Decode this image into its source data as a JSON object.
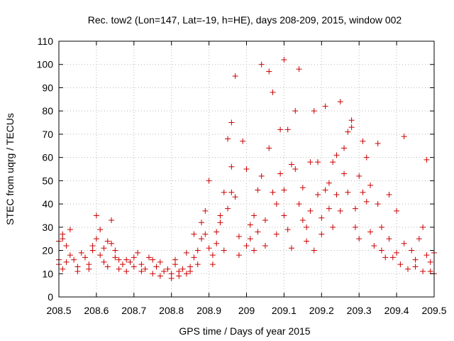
{
  "chart_data": {
    "type": "scatter",
    "title": "Rec. tow2 (Lon=147, Lat=-19, h=HE), days 208-209, 2015, window 002",
    "xlabel": "GPS time / Days of year 2015",
    "ylabel": "STEC from uqrg / TECUs",
    "xlim": [
      208.5,
      209.5
    ],
    "ylim": [
      0,
      110
    ],
    "xticks": [
      208.5,
      208.6,
      208.7,
      208.8,
      208.9,
      209,
      209.1,
      209.2,
      209.3,
      209.4,
      209.5
    ],
    "xtick_labels": [
      "208.5",
      "208.6",
      "208.7",
      "208.8",
      "208.9",
      "209",
      "209.1",
      "209.2",
      "209.3",
      "209.4",
      "209.5"
    ],
    "yticks": [
      0,
      10,
      20,
      30,
      40,
      50,
      60,
      70,
      80,
      90,
      100,
      110
    ],
    "ytick_labels": [
      "0",
      "10",
      "20",
      "30",
      "40",
      "50",
      "60",
      "70",
      "80",
      "90",
      "100",
      "110"
    ],
    "marker": "+",
    "color": "#cc0000",
    "series": [
      {
        "name": "STEC",
        "points": [
          [
            208.5,
            24
          ],
          [
            208.51,
            27
          ],
          [
            208.51,
            25
          ],
          [
            208.52,
            22
          ],
          [
            208.5,
            16
          ],
          [
            208.5,
            14
          ],
          [
            208.51,
            12
          ],
          [
            208.52,
            15
          ],
          [
            208.53,
            29
          ],
          [
            208.53,
            18
          ],
          [
            208.54,
            16
          ],
          [
            208.55,
            13
          ],
          [
            208.55,
            11
          ],
          [
            208.56,
            19
          ],
          [
            208.57,
            17
          ],
          [
            208.58,
            14
          ],
          [
            208.58,
            12
          ],
          [
            208.59,
            20
          ],
          [
            208.59,
            22
          ],
          [
            208.6,
            35
          ],
          [
            208.6,
            25
          ],
          [
            208.61,
            29
          ],
          [
            208.61,
            18
          ],
          [
            208.62,
            21
          ],
          [
            208.62,
            15
          ],
          [
            208.63,
            24
          ],
          [
            208.63,
            13
          ],
          [
            208.64,
            23
          ],
          [
            208.64,
            33
          ],
          [
            208.65,
            20
          ],
          [
            208.65,
            17
          ],
          [
            208.66,
            12
          ],
          [
            208.66,
            16
          ],
          [
            208.67,
            14
          ],
          [
            208.68,
            11
          ],
          [
            208.68,
            16
          ],
          [
            208.69,
            15
          ],
          [
            208.7,
            13
          ],
          [
            208.7,
            17
          ],
          [
            208.71,
            19
          ],
          [
            208.72,
            14
          ],
          [
            208.72,
            11
          ],
          [
            208.73,
            12
          ],
          [
            208.74,
            17
          ],
          [
            208.75,
            16
          ],
          [
            208.75,
            10
          ],
          [
            208.76,
            13
          ],
          [
            208.77,
            9
          ],
          [
            208.77,
            15
          ],
          [
            208.78,
            11
          ],
          [
            208.79,
            12
          ],
          [
            208.8,
            8
          ],
          [
            208.8,
            10
          ],
          [
            208.81,
            14
          ],
          [
            208.81,
            16
          ],
          [
            208.82,
            9
          ],
          [
            208.82,
            11
          ],
          [
            208.83,
            12
          ],
          [
            208.84,
            10
          ],
          [
            208.84,
            19
          ],
          [
            208.85,
            13
          ],
          [
            208.85,
            11
          ],
          [
            208.86,
            17
          ],
          [
            208.86,
            27
          ],
          [
            208.87,
            14
          ],
          [
            208.87,
            20
          ],
          [
            208.88,
            25
          ],
          [
            208.88,
            32
          ],
          [
            208.89,
            37
          ],
          [
            208.89,
            27
          ],
          [
            208.9,
            50
          ],
          [
            208.9,
            21
          ],
          [
            208.91,
            18
          ],
          [
            208.91,
            14
          ],
          [
            208.92,
            23
          ],
          [
            208.92,
            28
          ],
          [
            208.93,
            35
          ],
          [
            208.93,
            32
          ],
          [
            208.94,
            45
          ],
          [
            208.94,
            20
          ],
          [
            208.95,
            38
          ],
          [
            208.95,
            68
          ],
          [
            208.96,
            45
          ],
          [
            208.96,
            56
          ],
          [
            208.96,
            75
          ],
          [
            208.97,
            43
          ],
          [
            208.97,
            95
          ],
          [
            208.98,
            26
          ],
          [
            208.98,
            18
          ],
          [
            208.99,
            67
          ],
          [
            209.0,
            55
          ],
          [
            209.0,
            22
          ],
          [
            209.01,
            31
          ],
          [
            209.01,
            25
          ],
          [
            209.02,
            20
          ],
          [
            209.02,
            35
          ],
          [
            209.03,
            46
          ],
          [
            209.03,
            28
          ],
          [
            209.04,
            100
          ],
          [
            209.04,
            52
          ],
          [
            209.05,
            22
          ],
          [
            209.05,
            33
          ],
          [
            209.06,
            97
          ],
          [
            209.06,
            64
          ],
          [
            209.07,
            88
          ],
          [
            209.07,
            45
          ],
          [
            209.08,
            40
          ],
          [
            209.08,
            27
          ],
          [
            209.09,
            72
          ],
          [
            209.09,
            53
          ],
          [
            209.1,
            102
          ],
          [
            209.1,
            35
          ],
          [
            209.1,
            46
          ],
          [
            209.11,
            29
          ],
          [
            209.11,
            72
          ],
          [
            209.12,
            57
          ],
          [
            209.12,
            21
          ],
          [
            209.13,
            80
          ],
          [
            209.13,
            55
          ],
          [
            209.14,
            40
          ],
          [
            209.14,
            98
          ],
          [
            209.15,
            47
          ],
          [
            209.15,
            33
          ],
          [
            209.16,
            30
          ],
          [
            209.16,
            24
          ],
          [
            209.17,
            58
          ],
          [
            209.17,
            37
          ],
          [
            209.18,
            80
          ],
          [
            209.18,
            20
          ],
          [
            209.19,
            58
          ],
          [
            209.19,
            44
          ],
          [
            209.2,
            34
          ],
          [
            209.2,
            27
          ],
          [
            209.21,
            46
          ],
          [
            209.21,
            82
          ],
          [
            209.22,
            49
          ],
          [
            209.22,
            38
          ],
          [
            209.23,
            30
          ],
          [
            209.23,
            58
          ],
          [
            209.24,
            61
          ],
          [
            209.24,
            44
          ],
          [
            209.25,
            37
          ],
          [
            209.25,
            84
          ],
          [
            209.26,
            64
          ],
          [
            209.26,
            53
          ],
          [
            209.27,
            71
          ],
          [
            209.27,
            45
          ],
          [
            209.28,
            76
          ],
          [
            209.28,
            73
          ],
          [
            209.29,
            38
          ],
          [
            209.29,
            30
          ],
          [
            209.3,
            52
          ],
          [
            209.3,
            25
          ],
          [
            209.31,
            67
          ],
          [
            209.31,
            45
          ],
          [
            209.32,
            60
          ],
          [
            209.32,
            41
          ],
          [
            209.33,
            28
          ],
          [
            209.33,
            48
          ],
          [
            209.34,
            22
          ],
          [
            209.35,
            66
          ],
          [
            209.35,
            40
          ],
          [
            209.36,
            20
          ],
          [
            209.36,
            30
          ],
          [
            209.37,
            17
          ],
          [
            209.38,
            44
          ],
          [
            209.38,
            25
          ],
          [
            209.39,
            17
          ],
          [
            209.4,
            19
          ],
          [
            209.4,
            37
          ],
          [
            209.41,
            14
          ],
          [
            209.42,
            69
          ],
          [
            209.42,
            23
          ],
          [
            209.43,
            12
          ],
          [
            209.44,
            20
          ],
          [
            209.45,
            16
          ],
          [
            209.45,
            13
          ],
          [
            209.46,
            25
          ],
          [
            209.47,
            11
          ],
          [
            209.47,
            30
          ],
          [
            209.48,
            18
          ],
          [
            209.48,
            59
          ],
          [
            209.49,
            11
          ],
          [
            209.49,
            15
          ],
          [
            209.5,
            19
          ],
          [
            209.5,
            10
          ]
        ]
      }
    ]
  }
}
